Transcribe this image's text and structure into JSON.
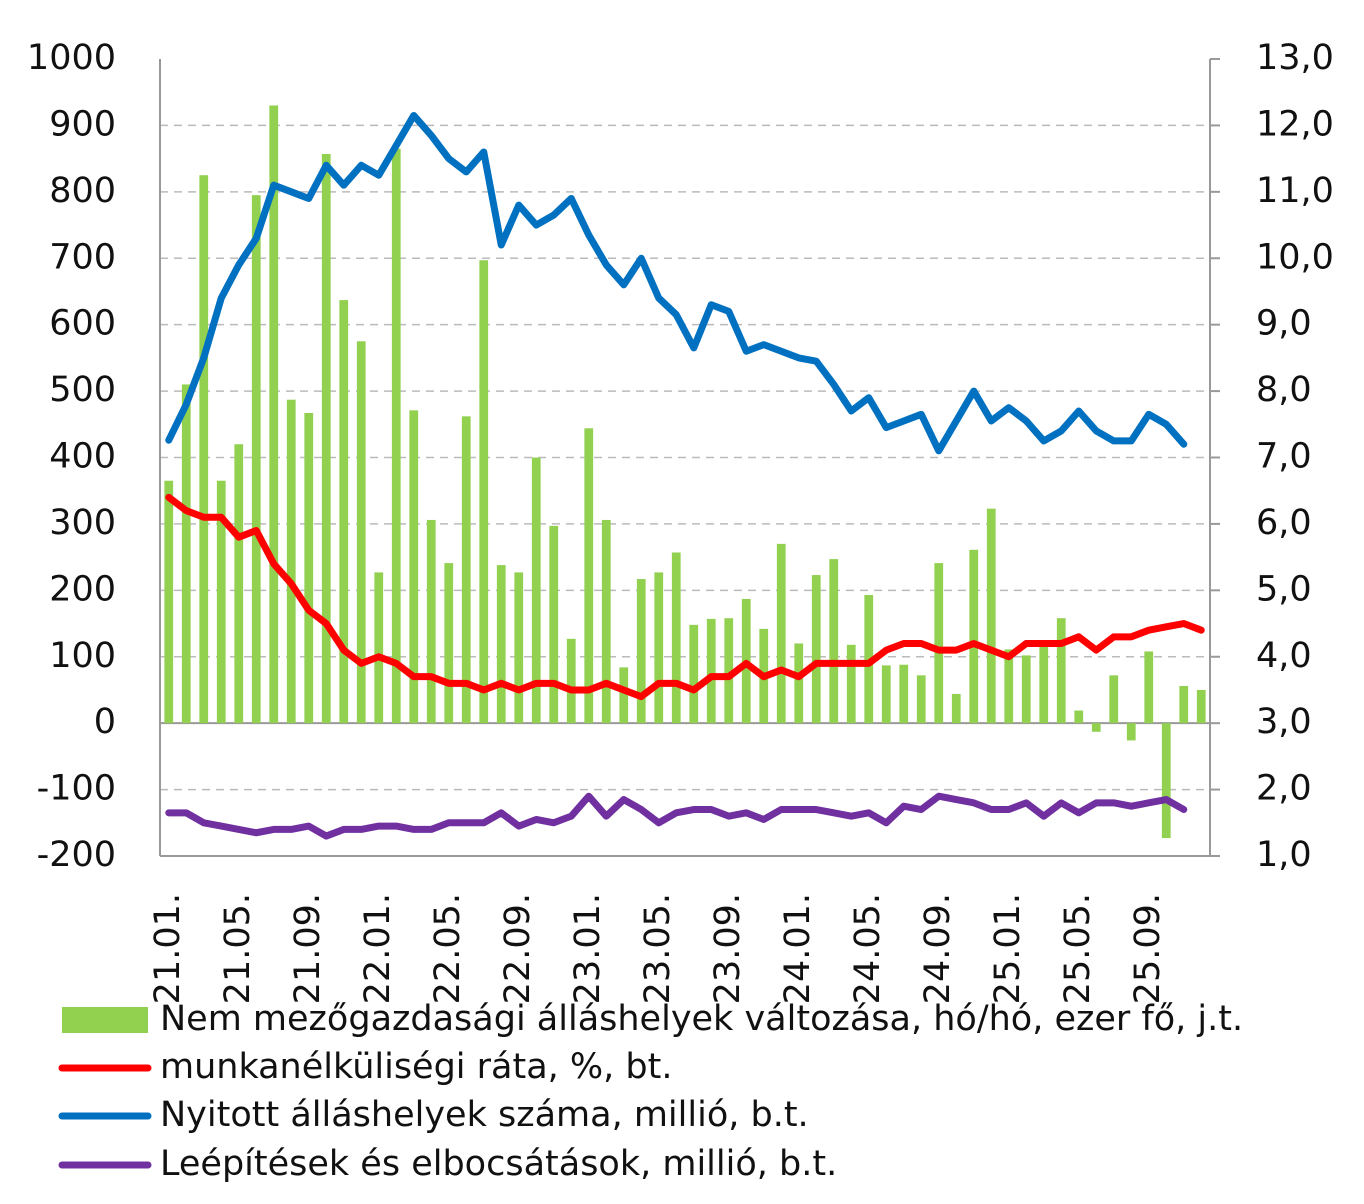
{
  "chart_data": {
    "type": "bar",
    "categories": [
      "21.01.",
      null,
      null,
      null,
      "21.05.",
      null,
      null,
      null,
      "21.09.",
      null,
      null,
      null,
      "22.01.",
      null,
      null,
      null,
      "22.05.",
      null,
      null,
      null,
      "22.09.",
      null,
      null,
      null,
      "23.01.",
      null,
      null,
      null,
      "23.05.",
      null,
      null,
      null,
      "23.09.",
      null,
      null,
      null,
      "24.01.",
      null,
      null,
      null,
      "24.05.",
      null,
      null,
      null,
      "24.09.",
      null,
      null,
      null,
      "25.01.",
      null,
      null,
      null,
      "25.05.",
      null,
      null,
      null,
      "25.09.",
      null,
      null,
      null
    ],
    "ylim": [
      -200,
      1000
    ],
    "yticks": [
      -200,
      -100,
      0,
      100,
      200,
      300,
      400,
      500,
      600,
      700,
      800,
      900,
      1000
    ],
    "y2lim": [
      1,
      13
    ],
    "y2ticks": [
      {
        "value": 1,
        "label": "1,0"
      },
      {
        "value": 2,
        "label": "2,0"
      },
      {
        "value": 3,
        "label": "3,0"
      },
      {
        "value": 4,
        "label": "4,0"
      },
      {
        "value": 5,
        "label": "5,0"
      },
      {
        "value": 6,
        "label": "6,0"
      },
      {
        "value": 7,
        "label": "7,0"
      },
      {
        "value": 8,
        "label": "8,0"
      },
      {
        "value": 9,
        "label": "9,0"
      },
      {
        "value": 10,
        "label": "10,0"
      },
      {
        "value": 11,
        "label": "11,0"
      },
      {
        "value": 12,
        "label": "12,0"
      },
      {
        "value": 13,
        "label": "13,0"
      }
    ],
    "grid": true,
    "series": [
      {
        "name": "Nem mezőgazdasági álláshelyek változása, hó/hó, ezer fő, j.t.",
        "type": "bar",
        "color": "#92d050",
        "values": [
          365,
          510,
          825,
          365,
          420,
          795,
          930,
          487,
          467,
          857,
          637,
          575,
          227,
          865,
          471,
          306,
          241,
          462,
          697,
          238,
          227,
          400,
          297,
          127,
          444,
          306,
          84,
          217,
          227,
          257,
          148,
          157,
          158,
          187,
          142,
          270,
          120,
          223,
          247,
          118,
          193,
          87,
          88,
          72,
          241,
          44,
          261,
          323,
          111,
          102,
          120,
          158,
          19,
          -13,
          72,
          -26,
          108,
          -173,
          56,
          50
        ]
      },
      {
        "name": "munkanélküliségi ráta, %, bt.",
        "type": "line",
        "axis": "y2",
        "color": "#ff0000",
        "values": [
          6.4,
          6.2,
          6.1,
          6.1,
          5.8,
          5.9,
          5.4,
          5.1,
          4.7,
          4.5,
          4.1,
          3.9,
          4.0,
          3.9,
          3.7,
          3.7,
          3.6,
          3.6,
          3.5,
          3.6,
          3.5,
          3.6,
          3.6,
          3.5,
          3.5,
          3.6,
          3.5,
          3.4,
          3.6,
          3.6,
          3.5,
          3.7,
          3.7,
          3.9,
          3.7,
          3.8,
          3.7,
          3.9,
          3.9,
          3.9,
          3.9,
          4.1,
          4.2,
          4.2,
          4.1,
          4.1,
          4.2,
          4.1,
          4.0,
          4.2,
          4.2,
          4.2,
          4.3,
          4.1,
          4.3,
          4.3,
          4.4,
          4.45,
          4.5,
          4.4
        ]
      },
      {
        "name": "Nyitott álláshelyek száma, millió, b.t.",
        "type": "line",
        "axis": "y2",
        "color": "#0070c0",
        "values": [
          7.26,
          7.8,
          8.5,
          9.4,
          9.9,
          10.3,
          11.1,
          11.0,
          10.9,
          11.4,
          11.1,
          11.4,
          11.25,
          11.7,
          12.15,
          11.85,
          11.5,
          11.3,
          11.6,
          10.2,
          10.8,
          10.5,
          10.65,
          10.9,
          10.35,
          9.9,
          9.6,
          10.0,
          9.4,
          9.15,
          8.65,
          9.3,
          9.2,
          8.6,
          8.7,
          8.6,
          8.5,
          8.45,
          8.1,
          7.7,
          7.9,
          7.45,
          7.55,
          7.65,
          7.1,
          7.55,
          8.0,
          7.55,
          7.75,
          7.55,
          7.25,
          7.4,
          7.7,
          7.4,
          7.25,
          7.25,
          7.65,
          7.5,
          7.2,
          null
        ]
      },
      {
        "name": "Leépítések és elbocsátások, millió, b.t.",
        "type": "line",
        "axis": "y2",
        "color": "#7030a0",
        "values": [
          1.65,
          1.65,
          1.5,
          1.45,
          1.4,
          1.35,
          1.4,
          1.4,
          1.45,
          1.3,
          1.4,
          1.4,
          1.45,
          1.45,
          1.4,
          1.4,
          1.5,
          1.5,
          1.5,
          1.65,
          1.45,
          1.55,
          1.5,
          1.6,
          1.9,
          1.6,
          1.85,
          1.7,
          1.5,
          1.65,
          1.7,
          1.7,
          1.6,
          1.65,
          1.55,
          1.7,
          1.7,
          1.7,
          1.65,
          1.6,
          1.65,
          1.5,
          1.75,
          1.7,
          1.9,
          1.85,
          1.8,
          1.7,
          1.7,
          1.8,
          1.6,
          1.8,
          1.65,
          1.8,
          1.8,
          1.75,
          1.8,
          1.85,
          1.7,
          null
        ]
      }
    ]
  }
}
